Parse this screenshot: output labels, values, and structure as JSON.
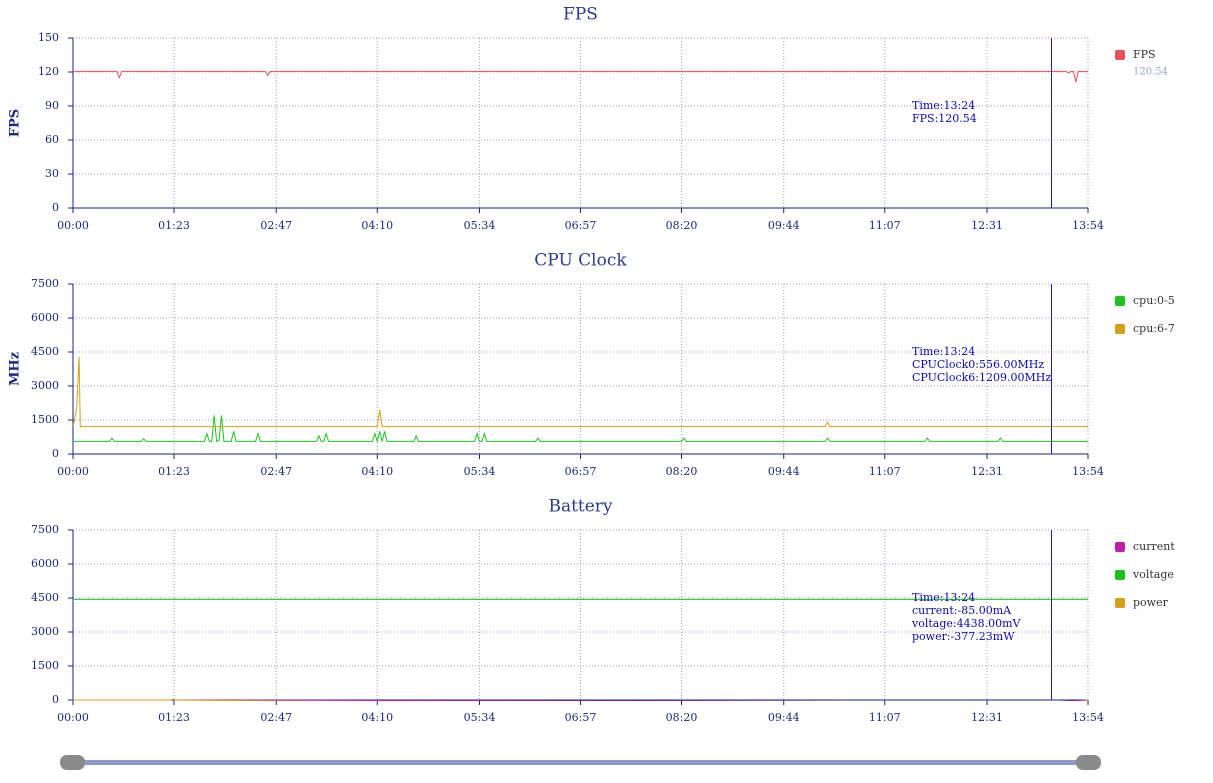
{
  "chart_data": [
    {
      "type": "line",
      "title": "FPS",
      "ylabel": "FPS",
      "x": [
        0,
        36,
        38,
        40,
        158,
        160,
        162,
        400,
        816,
        818,
        820,
        822,
        824,
        826,
        834
      ],
      "series": [
        {
          "name": "FPS",
          "color": "#e8505b",
          "current_value": "120.54",
          "values": [
            120.5,
            120.5,
            115,
            120.5,
            120.5,
            117,
            120.5,
            120.5,
            120.5,
            119,
            120.5,
            120.5,
            111,
            120.5,
            120.5
          ]
        }
      ],
      "xlim": [
        0,
        834
      ],
      "xticks": [
        {
          "value": 0,
          "label": "00:00"
        },
        {
          "value": 83,
          "label": "01:23"
        },
        {
          "value": 167,
          "label": "02:47"
        },
        {
          "value": 250,
          "label": "04:10"
        },
        {
          "value": 334,
          "label": "05:34"
        },
        {
          "value": 417,
          "label": "06:57"
        },
        {
          "value": 500,
          "label": "08:20"
        },
        {
          "value": 584,
          "label": "09:44"
        },
        {
          "value": 667,
          "label": "11:07"
        },
        {
          "value": 751,
          "label": "12:31"
        },
        {
          "value": 834,
          "label": "13:54"
        }
      ],
      "ylim": [
        0,
        150
      ],
      "yticks": [
        0,
        30,
        60,
        90,
        120,
        150
      ],
      "grid": true,
      "cursor_x": 804,
      "tooltip": [
        "Time:13:24",
        "FPS:120.54"
      ]
    },
    {
      "type": "line",
      "title": "CPU Clock",
      "ylabel": "MHz",
      "x": [
        0,
        3,
        5,
        6,
        30,
        32,
        34,
        56,
        58,
        60,
        108,
        110,
        112,
        114,
        116,
        118,
        120,
        122,
        124,
        130,
        132,
        134,
        150,
        152,
        154,
        200,
        202,
        204,
        206,
        208,
        210,
        246,
        248,
        250,
        252,
        254,
        256,
        258,
        280,
        282,
        284,
        330,
        332,
        334,
        336,
        338,
        340,
        380,
        382,
        384,
        500,
        502,
        504,
        618,
        620,
        622,
        700,
        702,
        704,
        760,
        762,
        764,
        800,
        802,
        804,
        834
      ],
      "series": [
        {
          "name": "cpu:0-5",
          "color": "#1ec21e",
          "values": [
            556,
            556,
            556,
            556,
            556,
            700,
            556,
            556,
            680,
            556,
            556,
            900,
            556,
            556,
            1700,
            556,
            600,
            1700,
            556,
            556,
            1000,
            556,
            556,
            900,
            556,
            556,
            800,
            556,
            556,
            900,
            556,
            556,
            900,
            556,
            1000,
            556,
            1000,
            556,
            556,
            800,
            556,
            556,
            900,
            556,
            556,
            900,
            556,
            556,
            700,
            556,
            556,
            700,
            556,
            556,
            700,
            556,
            556,
            700,
            556,
            556,
            700,
            556,
            556,
            556,
            556,
            556
          ]
        },
        {
          "name": "cpu:6-7",
          "color": "#d4a017",
          "values": [
            1209,
            2000,
            4300,
            1209,
            1209,
            1209,
            1209,
            1209,
            1209,
            1209,
            1209,
            1209,
            1209,
            1209,
            1209,
            1209,
            1209,
            1209,
            1209,
            1209,
            1209,
            1209,
            1209,
            1209,
            1209,
            1209,
            1209,
            1209,
            1209,
            1209,
            1209,
            1209,
            1209,
            1209,
            1950,
            1209,
            1209,
            1209,
            1209,
            1209,
            1209,
            1209,
            1209,
            1209,
            1209,
            1209,
            1209,
            1209,
            1209,
            1209,
            1209,
            1209,
            1209,
            1209,
            1400,
            1209,
            1209,
            1209,
            1209,
            1209,
            1209,
            1209,
            1209,
            1209,
            1209,
            1209
          ]
        }
      ],
      "xlim": [
        0,
        834
      ],
      "xticks": [
        {
          "value": 0,
          "label": "00:00"
        },
        {
          "value": 83,
          "label": "01:23"
        },
        {
          "value": 167,
          "label": "02:47"
        },
        {
          "value": 250,
          "label": "04:10"
        },
        {
          "value": 334,
          "label": "05:34"
        },
        {
          "value": 417,
          "label": "06:57"
        },
        {
          "value": 500,
          "label": "08:20"
        },
        {
          "value": 584,
          "label": "09:44"
        },
        {
          "value": 667,
          "label": "11:07"
        },
        {
          "value": 751,
          "label": "12:31"
        },
        {
          "value": 834,
          "label": "13:54"
        }
      ],
      "ylim": [
        0,
        7500
      ],
      "yticks": [
        0,
        1500,
        3000,
        4500,
        6000,
        7500
      ],
      "grid": true,
      "cursor_x": 804,
      "tooltip": [
        "Time:13:24",
        "CPUClock0:556.00MHz",
        "CPUClock6:1209.00MHz"
      ]
    },
    {
      "type": "line",
      "title": "Battery",
      "x": [
        0,
        80,
        82,
        84,
        804,
        834
      ],
      "series": [
        {
          "name": "current",
          "color": "#c21ea8",
          "values": [
            0,
            0,
            20,
            0,
            -85,
            0
          ]
        },
        {
          "name": "voltage",
          "color": "#1ec21e",
          "values": [
            4438,
            4438,
            4438,
            4438,
            4438,
            4438
          ]
        },
        {
          "name": "power",
          "color": "#d4a017",
          "values": [
            0,
            0,
            30,
            0,
            -377.23,
            0
          ]
        }
      ],
      "xlim": [
        0,
        834
      ],
      "xticks": [
        {
          "value": 0,
          "label": "00:00"
        },
        {
          "value": 83,
          "label": "01:23"
        },
        {
          "value": 167,
          "label": "02:47"
        },
        {
          "value": 250,
          "label": "04:10"
        },
        {
          "value": 334,
          "label": "05:34"
        },
        {
          "value": 417,
          "label": "06:57"
        },
        {
          "value": 500,
          "label": "08:20"
        },
        {
          "value": 584,
          "label": "09:44"
        },
        {
          "value": 667,
          "label": "11:07"
        },
        {
          "value": 751,
          "label": "12:31"
        },
        {
          "value": 834,
          "label": "13:54"
        }
      ],
      "ylim": [
        0,
        7500
      ],
      "yticks": [
        0,
        1500,
        3000,
        4500,
        6000,
        7500
      ],
      "grid": true,
      "cursor_x": 804,
      "tooltip": [
        "Time:13:24",
        "current:-85.00mA",
        "voltage:4438.00mV",
        "power:-377.23mW"
      ]
    }
  ]
}
